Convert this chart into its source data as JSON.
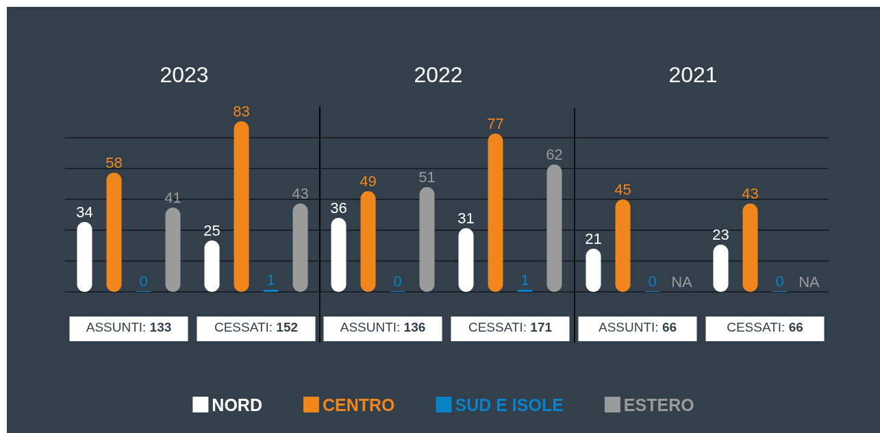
{
  "chart_data": [
    {
      "type": "bar",
      "title": "2023",
      "categories": [
        "ASSUNTI: 133",
        "CESSATI: 152"
      ],
      "series": [
        {
          "name": "NORD",
          "color": "#ffffff",
          "values": [
            34,
            25
          ]
        },
        {
          "name": "CENTRO",
          "color": "#f0861c",
          "values": [
            58,
            83
          ]
        },
        {
          "name": "SUD E ISOLE",
          "color": "#0a82c8",
          "values": [
            0,
            1
          ]
        },
        {
          "name": "ESTERO",
          "color": "#9b9b9b",
          "values": [
            41,
            43
          ]
        }
      ],
      "ylim": [
        0,
        90
      ],
      "yticks": [
        {
          "value": 0,
          "label": null
        },
        {
          "value": 15,
          "label": null
        },
        {
          "value": 30,
          "label": null
        },
        {
          "value": 45,
          "label": null
        },
        {
          "value": 60,
          "label": null
        },
        {
          "value": 75,
          "label": null
        }
      ],
      "grid": "y",
      "tick_labels": "x",
      "data_labels": true,
      "legend": "bottom"
    },
    {
      "type": "bar",
      "title": "2022",
      "categories": [
        "ASSUNTI: 136",
        "CESSATI: 171"
      ],
      "series": [
        {
          "color": "#ffffff",
          "values": [
            36,
            31
          ]
        },
        {
          "color": "#f0861c",
          "values": [
            49,
            77
          ]
        },
        {
          "color": "#0a82c8",
          "values": [
            0,
            1
          ]
        },
        {
          "color": "#9b9b9b",
          "values": [
            51,
            62
          ]
        }
      ],
      "ylim": [
        0,
        90
      ],
      "yticks": [
        {
          "value": 0,
          "label": null
        },
        {
          "value": 15,
          "label": null
        },
        {
          "value": 30,
          "label": null
        },
        {
          "value": 45,
          "label": null
        },
        {
          "value": 60,
          "label": null
        },
        {
          "value": 75,
          "label": null
        }
      ],
      "grid": "y",
      "tick_labels": "x",
      "data_labels": true
    },
    {
      "type": "bar",
      "title": "2021",
      "categories": [
        "ASSUNTI: 66",
        "CESSATI: 66"
      ],
      "series": [
        {
          "color": "#ffffff",
          "values": [
            21,
            23
          ]
        },
        {
          "color": "#f0861c",
          "values": [
            45,
            43
          ]
        },
        {
          "color": "#0a82c8",
          "values": [
            0,
            0
          ]
        },
        {
          "color": "#9b9b9b",
          "values": [
            null,
            null
          ],
          "value_labels": [
            "NA",
            "NA"
          ]
        }
      ],
      "ylim": [
        0,
        90
      ],
      "yticks": [
        {
          "value": 0,
          "label": null
        },
        {
          "value": 15,
          "label": null
        },
        {
          "value": 30,
          "label": null
        },
        {
          "value": 45,
          "label": null
        },
        {
          "value": 60,
          "label": null
        },
        {
          "value": 75,
          "label": null
        }
      ],
      "grid": "y",
      "tick_labels": "x",
      "data_labels": true
    }
  ]
}
